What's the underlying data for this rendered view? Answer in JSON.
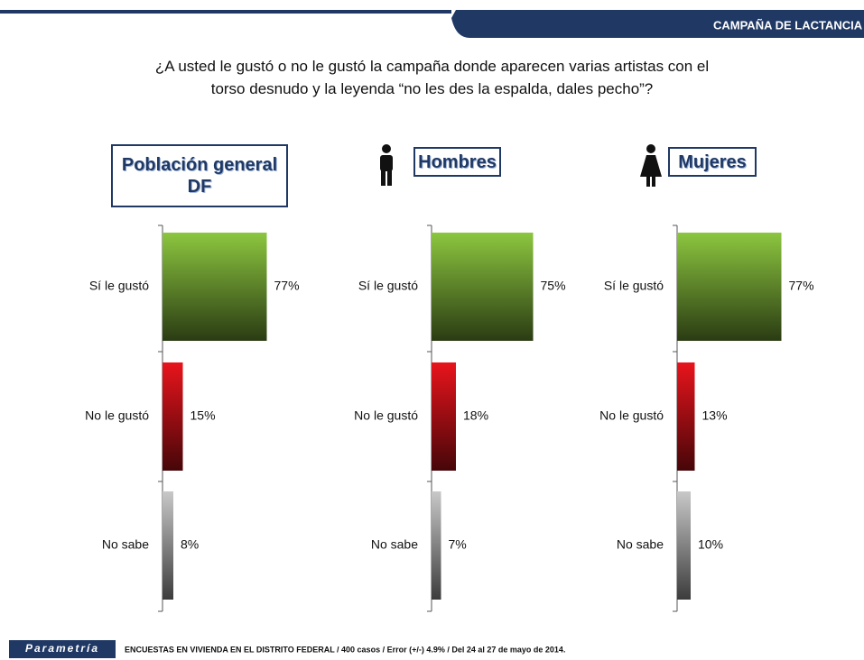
{
  "header": "CAMPAÑA  DE LACTANCIA",
  "question": [
    "¿A usted le gustó o no le gustó la campaña donde aparecen varias artistas con el",
    "torso desnudo y la leyenda “no les des la espalda, dales pecho”?"
  ],
  "footer": {
    "logo": "Parametría",
    "note": "ENCUESTAS EN VIVIENDA EN EL DISTRITO FEDERAL / 400 casos / Error (+/-) 4.9% / Del 24 al 27 de mayo de 2014."
  },
  "chart_data": [
    {
      "type": "bar",
      "title": "Población general DF",
      "categories": [
        "Sí le gustó",
        "No le gustó",
        "No sabe"
      ],
      "values": [
        77,
        15,
        8
      ],
      "value_labels": [
        "77%",
        "15%",
        "8%"
      ],
      "colors": [
        "#8cc63f",
        "#e8141c",
        "#c8c8c8"
      ]
    },
    {
      "type": "bar",
      "title": "Hombres",
      "categories": [
        "Sí le gustó",
        "No le gustó",
        "No sabe"
      ],
      "values": [
        75,
        18,
        7
      ],
      "value_labels": [
        "75%",
        "18%",
        "7%"
      ],
      "colors": [
        "#8cc63f",
        "#e8141c",
        "#c8c8c8"
      ]
    },
    {
      "type": "bar",
      "title": "Mujeres",
      "categories": [
        "Sí le gustó",
        "No le gustó",
        "No sabe"
      ],
      "values": [
        77,
        13,
        10
      ],
      "value_labels": [
        "77%",
        "13%",
        "10%"
      ],
      "colors": [
        "#8cc63f",
        "#e8141c",
        "#c8c8c8"
      ]
    }
  ]
}
